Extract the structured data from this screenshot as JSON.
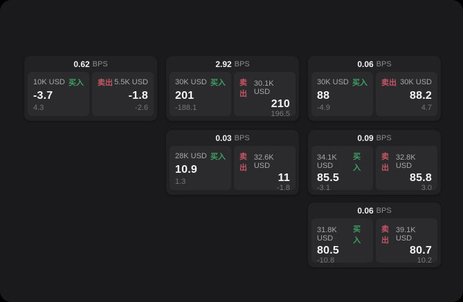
{
  "labels": {
    "buy": "买入",
    "sell": "卖出",
    "bps_unit": "BPS"
  },
  "colors": {
    "buy_green": "#3f9e63",
    "sell_red": "#c25663",
    "surface": "#1a1a1c",
    "card": "#222225",
    "tile": "#2b2b2e"
  },
  "cards": [
    {
      "bps": "0.62",
      "buy_amount": "10K USD",
      "buy_value": "-3.7",
      "buy_sub": "4.3",
      "sell_amount": "5.5K USD",
      "sell_value": "-1.8",
      "sell_sub": "-2.6"
    },
    {
      "bps": "2.92",
      "buy_amount": "30K USD",
      "buy_value": "201",
      "buy_sub": "-188.1",
      "sell_amount": "30.1K USD",
      "sell_value": "210",
      "sell_sub": "196.5"
    },
    {
      "bps": "0.06",
      "buy_amount": "30K USD",
      "buy_value": "88",
      "buy_sub": "-4.9",
      "sell_amount": "30K USD",
      "sell_value": "88.2",
      "sell_sub": "4.7"
    },
    {
      "bps": "0.03",
      "buy_amount": "28K USD",
      "buy_value": "10.9",
      "buy_sub": "1.3",
      "sell_amount": "32.6K USD",
      "sell_value": "11",
      "sell_sub": "-1.8"
    },
    {
      "bps": "0.09",
      "buy_amount": "34.1K USD",
      "buy_value": "85.5",
      "buy_sub": "-3.1",
      "sell_amount": "32.8K USD",
      "sell_value": "85.8",
      "sell_sub": "3.0"
    },
    {
      "bps": "0.06",
      "buy_amount": "31.8K USD",
      "buy_value": "80.5",
      "buy_sub": "-10.8",
      "sell_amount": "39.1K USD",
      "sell_value": "80.7",
      "sell_sub": "10.2"
    }
  ]
}
